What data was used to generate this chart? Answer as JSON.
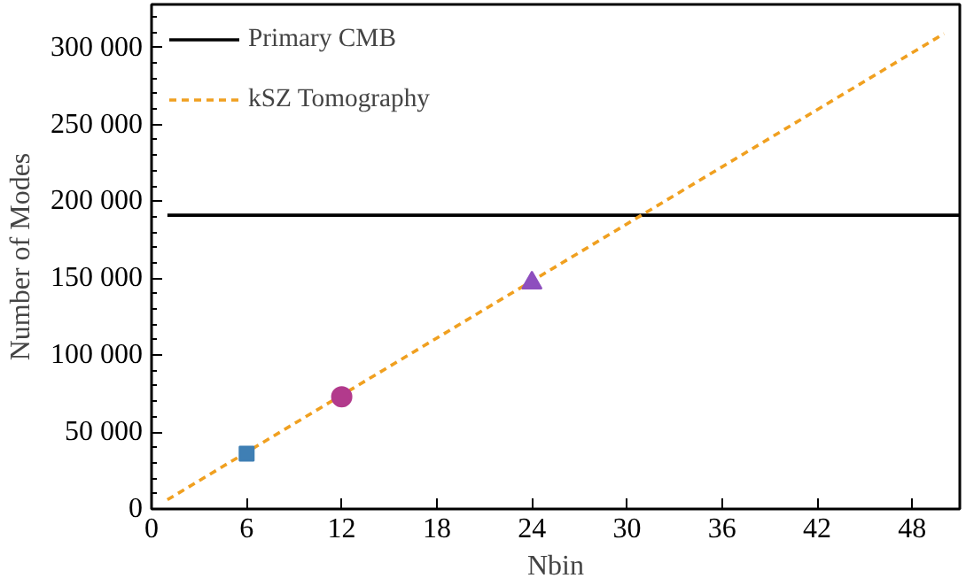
{
  "chart_data": {
    "type": "line",
    "xlabel": "Nbin",
    "ylabel": "Number of Modes",
    "xlim": [
      0,
      51
    ],
    "ylim": [
      0,
      328000
    ],
    "xticks": [
      0,
      6,
      12,
      18,
      24,
      30,
      36,
      42,
      48
    ],
    "yticks": [
      {
        "value": 0,
        "label": "0"
      },
      {
        "value": 50000,
        "label": "50 000"
      },
      {
        "value": 100000,
        "label": "100 000"
      },
      {
        "value": 150000,
        "label": "150 000"
      },
      {
        "value": 200000,
        "label": "200 000"
      },
      {
        "value": 250000,
        "label": "250 000"
      },
      {
        "value": 300000,
        "label": "300 000"
      }
    ],
    "legend": "top left",
    "grid": false,
    "series": [
      {
        "name": "Primary CMB",
        "type": "line",
        "color": "#000000",
        "line_style": "solid",
        "x": [
          1,
          51
        ],
        "values": [
          191000,
          191000
        ]
      },
      {
        "name": "kSZ Tomography",
        "type": "line",
        "color": "#f0a020",
        "line_style": "dashed",
        "x": [
          1,
          50
        ],
        "values": [
          6000,
          309000
        ]
      },
      {
        "type": "scatter",
        "marker": "square",
        "color": "#3f7fb4",
        "x": [
          6
        ],
        "values": [
          36000
        ]
      },
      {
        "type": "scatter",
        "marker": "circle",
        "color": "#b23a8c",
        "x": [
          12
        ],
        "values": [
          73000
        ]
      },
      {
        "type": "scatter",
        "marker": "triangle",
        "color": "#8e4fbe",
        "x": [
          24
        ],
        "values": [
          147000
        ]
      }
    ]
  }
}
